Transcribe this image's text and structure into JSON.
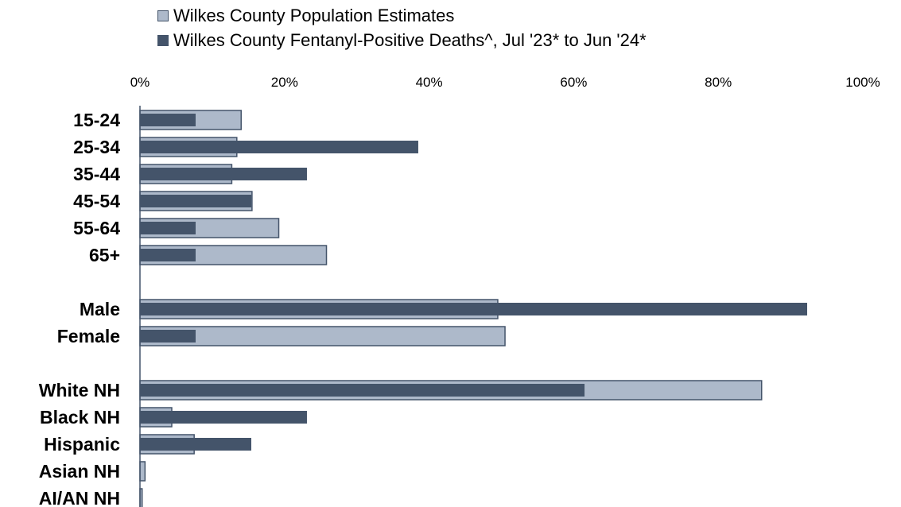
{
  "chart_data": {
    "type": "bar",
    "orientation": "horizontal",
    "title": "",
    "xlabel": "",
    "ylabel": "",
    "xlim": [
      0,
      100
    ],
    "x_ticks": [
      "0%",
      "20%",
      "40%",
      "60%",
      "80%",
      "100%"
    ],
    "grid": false,
    "legend_position": "top",
    "categories": [
      "15-24",
      "25-34",
      "35-44",
      "45-54",
      "55-64",
      "65+",
      "Male",
      "Female",
      "White NH",
      "Black NH",
      "Hispanic",
      "Asian NH",
      "AI/AN NH"
    ],
    "groups": [
      [
        "15-24",
        "25-34",
        "35-44",
        "45-54",
        "55-64",
        "65+"
      ],
      [
        "Male",
        "Female"
      ],
      [
        "White NH",
        "Black NH",
        "Hispanic",
        "Asian NH",
        "AI/AN NH"
      ]
    ],
    "series": [
      {
        "name": "Wilkes County Population Estimates",
        "color": "#adb9ca",
        "border": "#44546a",
        "values": [
          14.0,
          13.4,
          12.7,
          15.5,
          19.2,
          25.8,
          49.5,
          50.5,
          86.0,
          4.4,
          7.5,
          0.7,
          0.3
        ]
      },
      {
        "name": "Wilkes County Fentanyl-Positive Deaths^, Jul '23* to Jun '24*",
        "color": "#44546a",
        "values": [
          7.7,
          38.5,
          23.1,
          15.4,
          7.7,
          7.7,
          92.3,
          7.7,
          61.5,
          23.1,
          15.4,
          0,
          0
        ]
      }
    ]
  }
}
